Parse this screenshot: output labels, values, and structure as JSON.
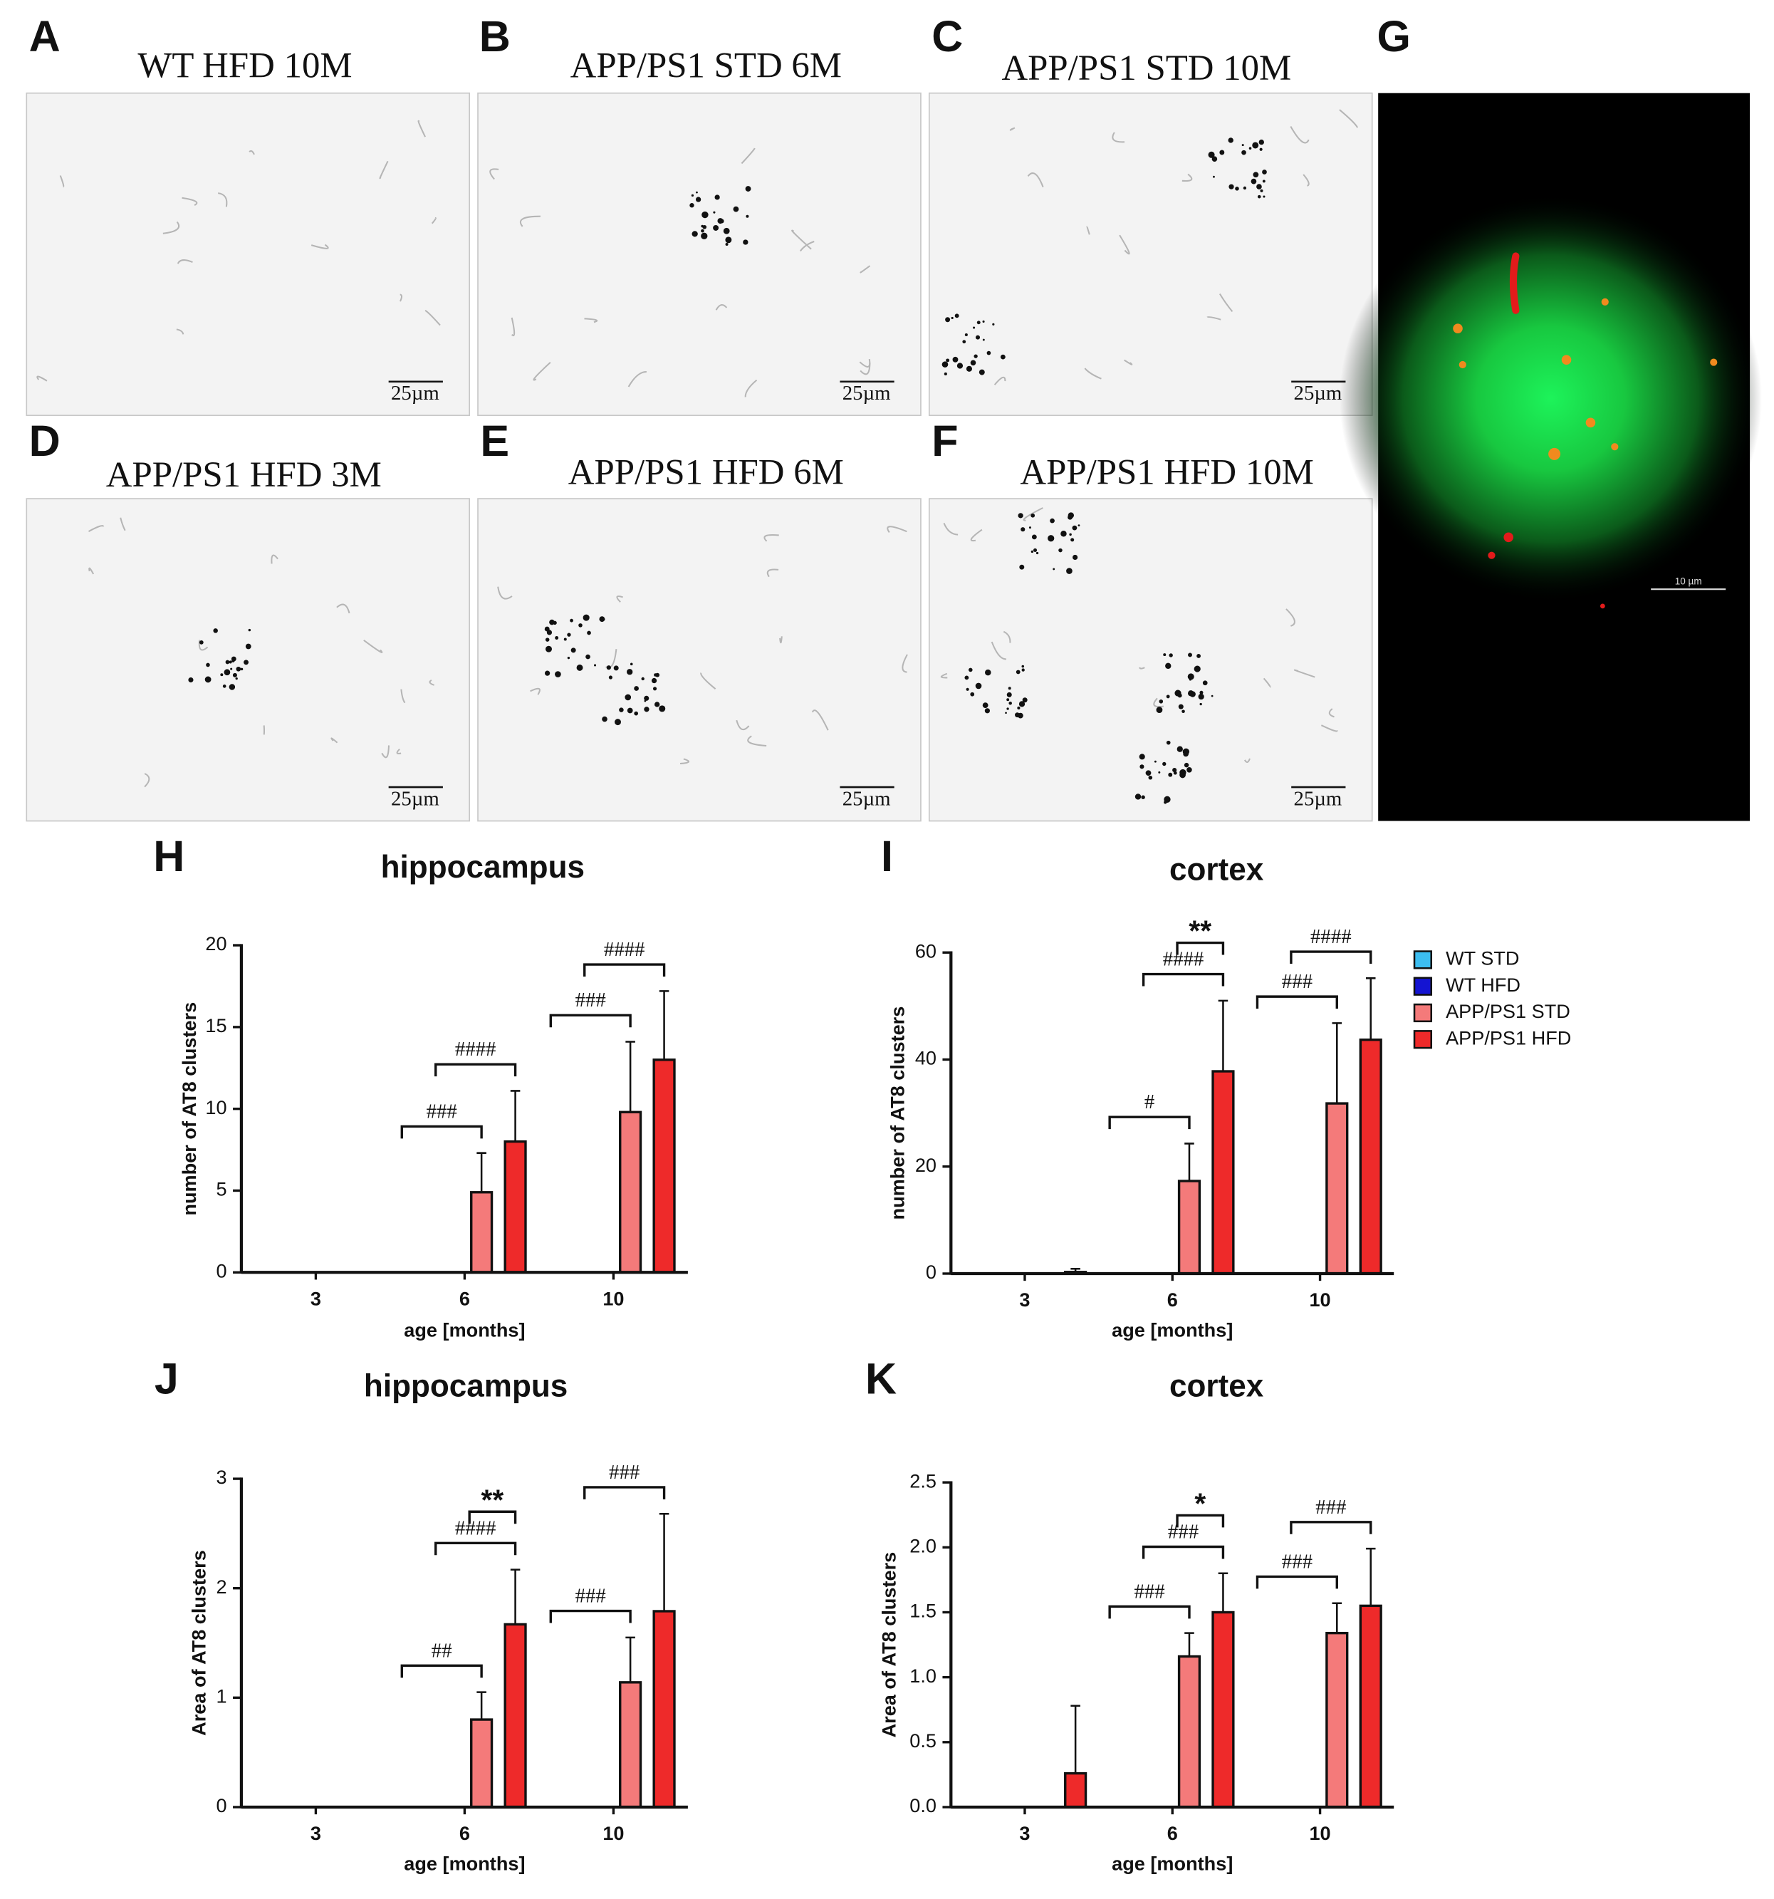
{
  "panels": [
    {
      "letter": "A",
      "title": "WT HFD 10M",
      "scale_bar": "25µm"
    },
    {
      "letter": "B",
      "title": "APP/PS1 STD 6M",
      "scale_bar": "25µm"
    },
    {
      "letter": "C",
      "title": "APP/PS1 STD 10M",
      "scale_bar": "25µm"
    },
    {
      "letter": "D",
      "title": "APP/PS1 HFD 3M",
      "scale_bar": "25µm"
    },
    {
      "letter": "E",
      "title": "APP/PS1 HFD 6M",
      "scale_bar": "25µm"
    },
    {
      "letter": "F",
      "title": "APP/PS1 HFD 10M",
      "scale_bar": "25µm"
    },
    {
      "letter": "G",
      "scale_bar": "10 µm"
    }
  ],
  "chart_data": [
    {
      "type": "bar",
      "panel": "H",
      "title": "hippocampus",
      "x_label": "age [months]",
      "y_label": "number of AT8 clusters",
      "categories": [
        "3",
        "6",
        "10"
      ],
      "ylim": [
        0,
        20
      ],
      "yticks": [
        0,
        5,
        10,
        15,
        20
      ],
      "legend": "right",
      "series": [
        {
          "name": "WT STD",
          "color": "#3cbdf0",
          "values": [
            0,
            0,
            0
          ],
          "errors": [
            0,
            0,
            0
          ]
        },
        {
          "name": "WT HFD",
          "color": "#1414d2",
          "values": [
            0,
            0,
            0
          ],
          "errors": [
            0,
            0,
            0
          ]
        },
        {
          "name": "APP/PS1 STD",
          "color": "#f47a7a",
          "values": [
            0,
            4.9,
            9.8
          ],
          "errors": [
            0,
            2.4,
            4.3
          ]
        },
        {
          "name": "APP/PS1 HFD",
          "color": "#ee2a2a",
          "values": [
            0,
            8.0,
            13.0
          ],
          "errors": [
            0,
            3.1,
            4.2
          ]
        }
      ],
      "comparisons": [
        {
          "label": "###",
          "category": 1,
          "series": [
            0,
            2
          ]
        },
        {
          "label": "####",
          "category": 1,
          "series": [
            1,
            3
          ]
        },
        {
          "label": "###",
          "category": 2,
          "series": [
            0,
            2
          ]
        },
        {
          "label": "####",
          "category": 2,
          "series": [
            1,
            3
          ]
        }
      ]
    },
    {
      "type": "bar",
      "panel": "I",
      "title": "cortex",
      "x_label": "age [months]",
      "y_label": "number of AT8 clusters",
      "categories": [
        "3",
        "6",
        "10"
      ],
      "ylim": [
        0,
        60
      ],
      "yticks": [
        0,
        20,
        40,
        60
      ],
      "series": [
        {
          "name": "WT STD",
          "color": "#3cbdf0",
          "values": [
            0,
            0,
            0
          ],
          "errors": [
            0,
            0,
            0
          ]
        },
        {
          "name": "WT HFD",
          "color": "#1414d2",
          "values": [
            0,
            0,
            0
          ],
          "errors": [
            0,
            0,
            0
          ]
        },
        {
          "name": "APP/PS1 STD",
          "color": "#f47a7a",
          "values": [
            0,
            17.3,
            31.8
          ],
          "errors": [
            0,
            7.0,
            15.0
          ]
        },
        {
          "name": "APP/PS1 HFD",
          "color": "#ee2a2a",
          "values": [
            0.3,
            37.8,
            43.7
          ],
          "errors": [
            0.6,
            13.2,
            11.5
          ]
        }
      ],
      "comparisons": [
        {
          "label": "#",
          "category": 1,
          "series": [
            0,
            2
          ]
        },
        {
          "label": "####",
          "category": 1,
          "series": [
            1,
            3
          ]
        },
        {
          "label": "**",
          "category": 1,
          "series": [
            2,
            3
          ]
        },
        {
          "label": "###",
          "category": 2,
          "series": [
            0,
            2
          ]
        },
        {
          "label": "####",
          "category": 2,
          "series": [
            1,
            3
          ]
        }
      ]
    },
    {
      "type": "bar",
      "panel": "J",
      "title": "hippocampus",
      "x_label": "age [months]",
      "y_label": "Area of AT8 clusters",
      "categories": [
        "3",
        "6",
        "10"
      ],
      "ylim": [
        0,
        3
      ],
      "yticks": [
        0,
        1,
        2,
        3
      ],
      "series": [
        {
          "name": "WT STD",
          "color": "#3cbdf0",
          "values": [
            0,
            0,
            0
          ],
          "errors": [
            0,
            0,
            0
          ]
        },
        {
          "name": "WT HFD",
          "color": "#1414d2",
          "values": [
            0,
            0,
            0
          ],
          "errors": [
            0,
            0,
            0
          ]
        },
        {
          "name": "APP/PS1 STD",
          "color": "#f47a7a",
          "values": [
            0,
            0.8,
            1.14
          ],
          "errors": [
            0,
            0.25,
            0.41
          ]
        },
        {
          "name": "APP/PS1 HFD",
          "color": "#ee2a2a",
          "values": [
            0,
            1.67,
            1.79
          ],
          "errors": [
            0,
            0.5,
            0.89
          ]
        }
      ],
      "comparisons": [
        {
          "label": "##",
          "category": 1,
          "series": [
            0,
            2
          ]
        },
        {
          "label": "####",
          "category": 1,
          "series": [
            1,
            3
          ]
        },
        {
          "label": "**",
          "category": 1,
          "series": [
            2,
            3
          ]
        },
        {
          "label": "###",
          "category": 2,
          "series": [
            0,
            2
          ]
        },
        {
          "label": "###",
          "category": 2,
          "series": [
            1,
            3
          ]
        }
      ]
    },
    {
      "type": "bar",
      "panel": "K",
      "title": "cortex",
      "x_label": "age [months]",
      "y_label": "Area of AT8 clusters",
      "categories": [
        "3",
        "6",
        "10"
      ],
      "ylim": [
        0,
        2.5
      ],
      "yticks": [
        {
          "value": 0,
          "label": "0.0"
        },
        0.5,
        {
          "value": 1,
          "label": "1.0"
        },
        1.5,
        {
          "value": 2,
          "label": "2.0"
        },
        2.5
      ],
      "series": [
        {
          "name": "WT STD",
          "color": "#3cbdf0",
          "values": [
            0,
            0,
            0
          ],
          "errors": [
            0,
            0,
            0
          ]
        },
        {
          "name": "WT HFD",
          "color": "#1414d2",
          "values": [
            0,
            0,
            0
          ],
          "errors": [
            0,
            0,
            0
          ]
        },
        {
          "name": "APP/PS1 STD",
          "color": "#f47a7a",
          "values": [
            0,
            1.16,
            1.34
          ],
          "errors": [
            0,
            0.18,
            0.23
          ]
        },
        {
          "name": "APP/PS1 HFD",
          "color": "#ee2a2a",
          "values": [
            0.26,
            1.5,
            1.55
          ],
          "errors": [
            0.52,
            0.3,
            0.44
          ]
        }
      ],
      "comparisons": [
        {
          "label": "###",
          "category": 1,
          "series": [
            0,
            2
          ]
        },
        {
          "label": "###",
          "category": 1,
          "series": [
            1,
            3
          ]
        },
        {
          "label": "*",
          "category": 1,
          "series": [
            2,
            3
          ]
        },
        {
          "label": "###",
          "category": 2,
          "series": [
            0,
            2
          ]
        },
        {
          "label": "###",
          "category": 2,
          "series": [
            1,
            3
          ]
        }
      ]
    }
  ]
}
